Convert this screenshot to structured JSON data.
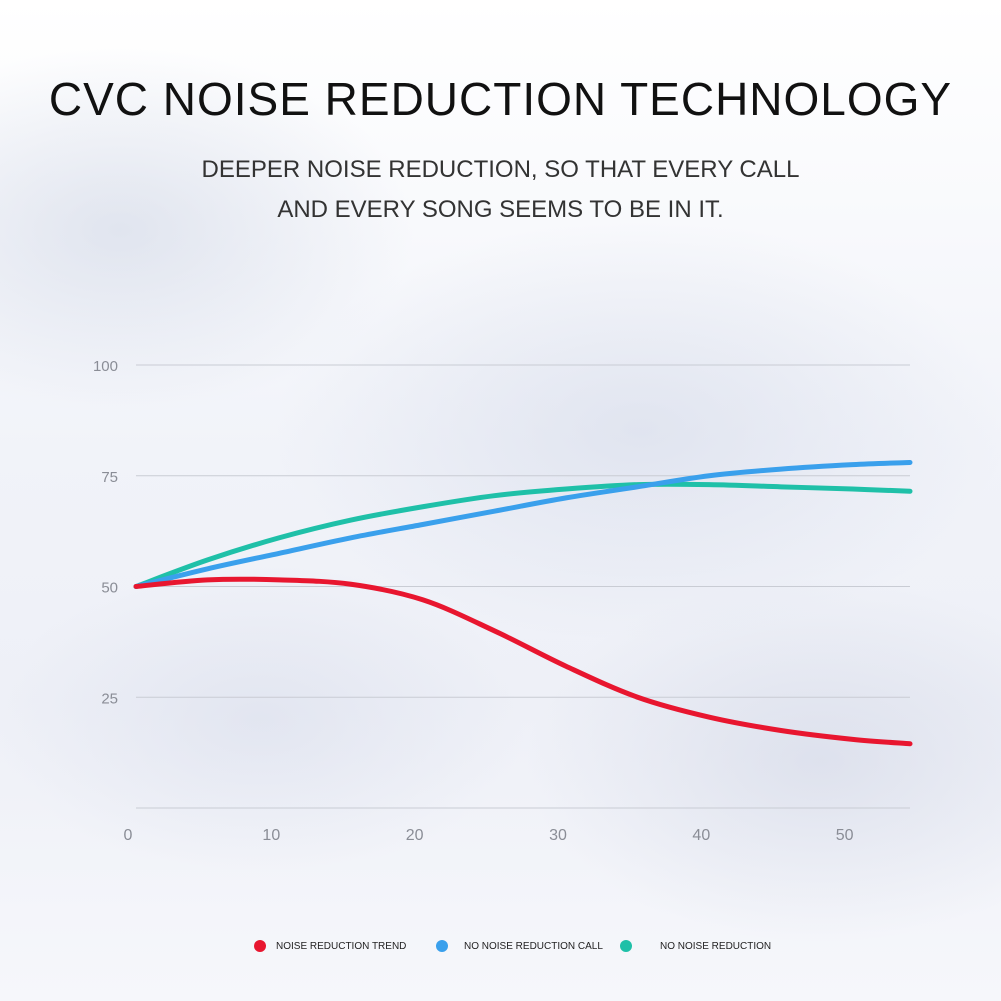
{
  "header": {
    "title": "CVC NOISE REDUCTION TECHNOLOGY",
    "subtitle_lines": [
      "DEEPER NOISE REDUCTION, SO THAT EVERY CALL",
      "AND EVERY SONG SEEMS TO BE IN IT."
    ]
  },
  "chart_data": {
    "type": "line",
    "title": "",
    "xlabel": "",
    "ylabel": "",
    "xlim": [
      0,
      54
    ],
    "ylim": [
      0,
      100
    ],
    "x_ticks": [
      0,
      10,
      20,
      30,
      40,
      50
    ],
    "y_ticks": [
      25,
      50,
      75,
      100
    ],
    "grid": true,
    "legend_position": "bottom",
    "series": [
      {
        "name": "NOISE REDUCTION TREND",
        "color": "#e8162f",
        "x": [
          0,
          5,
          10,
          15,
          20,
          25,
          30,
          35,
          40,
          45,
          50,
          54
        ],
        "values": [
          50,
          51.5,
          51.5,
          50.5,
          47,
          40,
          32,
          25,
          20.5,
          17.5,
          15.5,
          14.5
        ]
      },
      {
        "name": "NO NOISE REDUCTION CALL",
        "color": "#3aa0ec",
        "x": [
          0,
          5,
          10,
          15,
          20,
          25,
          30,
          35,
          40,
          45,
          50,
          54
        ],
        "values": [
          50,
          54,
          57.5,
          61,
          64,
          67,
          70,
          72.5,
          75,
          76.5,
          77.5,
          78
        ]
      },
      {
        "name": "NO NOISE REDUCTION",
        "color": "#1fc0a8",
        "x": [
          0,
          5,
          10,
          15,
          20,
          25,
          30,
          35,
          40,
          45,
          50,
          54
        ],
        "values": [
          50,
          56,
          61,
          65,
          68,
          70.5,
          72,
          73,
          73,
          72.5,
          72,
          71.5
        ]
      }
    ]
  }
}
